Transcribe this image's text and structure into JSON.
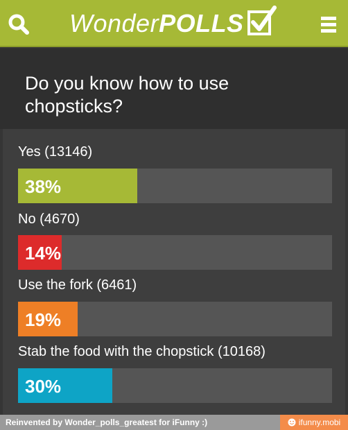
{
  "header": {
    "brand_light": "Wonder",
    "brand_bold": "POLLS",
    "search_icon": "search-icon",
    "menu_icon": "hamburger-menu-icon",
    "bar_color": "#a6b936"
  },
  "poll": {
    "question": "Do you know how to use chopsticks?",
    "options": [
      {
        "label": "Yes (13146)",
        "percent_label": "38%",
        "percent": 38,
        "color": "#a6b936"
      },
      {
        "label": "No (4670)",
        "percent_label": "14%",
        "percent": 14,
        "color": "#dd2b2b"
      },
      {
        "label": "Use the fork (6461)",
        "percent_label": "19%",
        "percent": 19,
        "color": "#ee7f26"
      },
      {
        "label": "Stab the food with the chopstick (10168)",
        "percent_label": "30%",
        "percent": 30,
        "color": "#0ea4c6"
      }
    ]
  },
  "footer": {
    "credit": "Reinvented by Wonder_polls_greatest for iFunny :)",
    "watermark": "ifunny.mobi"
  }
}
